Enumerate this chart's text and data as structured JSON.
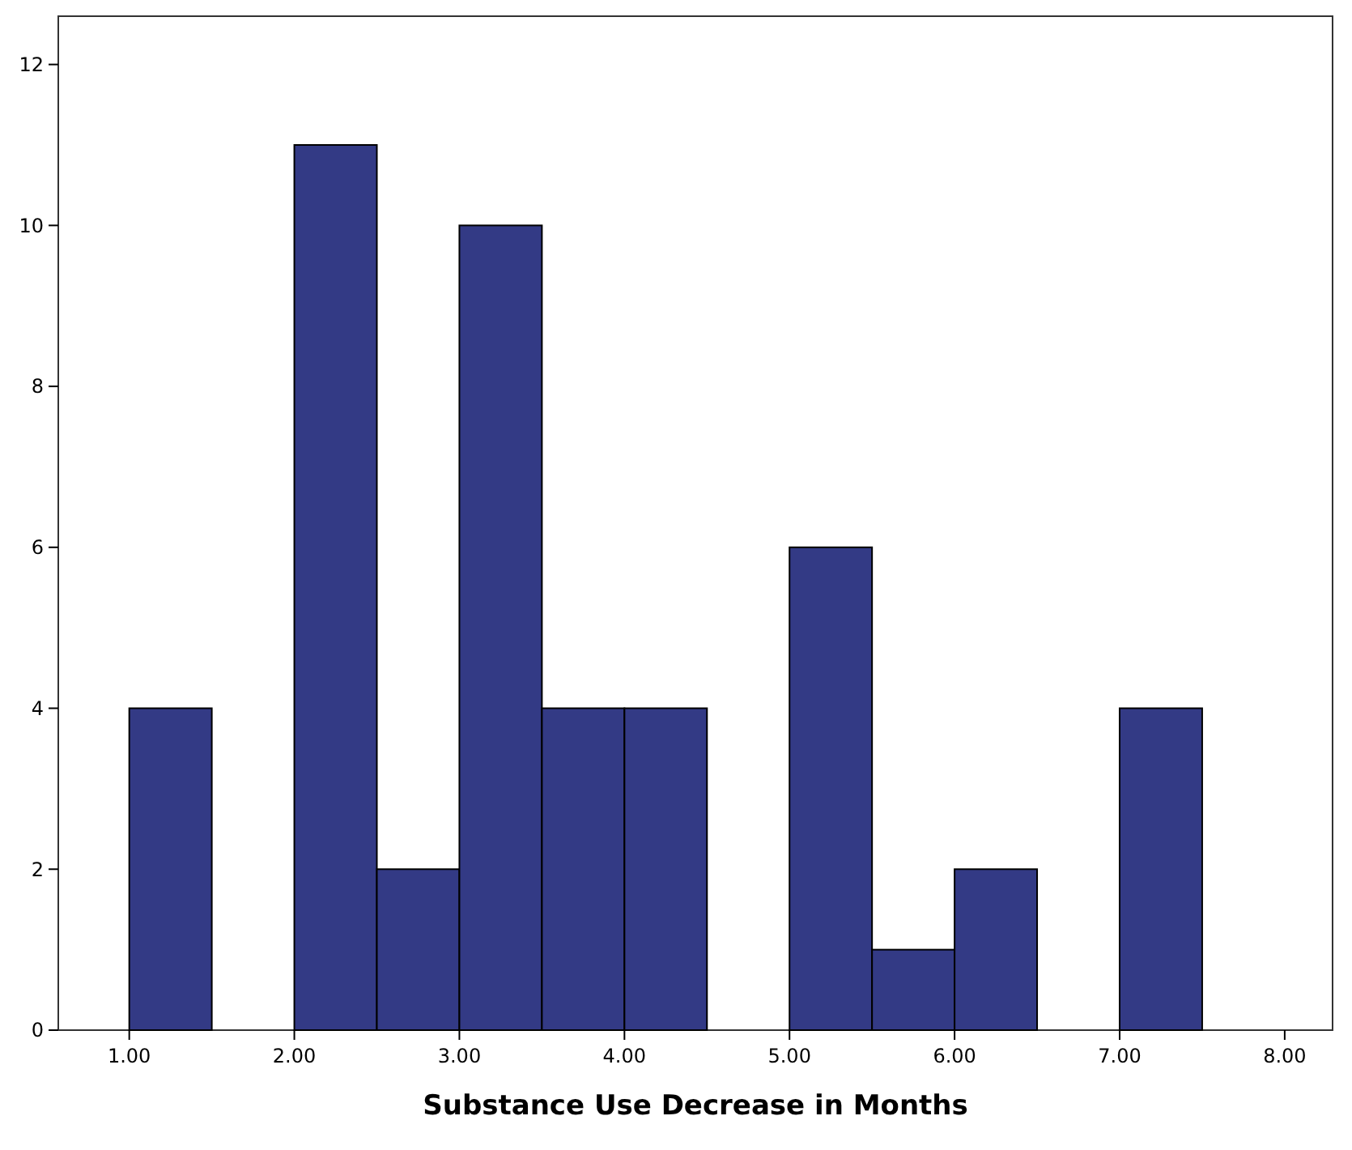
{
  "chart_data": {
    "type": "histogram",
    "xlabel": "Substance Use Decrease in Months",
    "bins": [
      1.0,
      1.5,
      2.0,
      2.5,
      3.0,
      3.5,
      4.0,
      4.5,
      5.0,
      5.5,
      6.0,
      6.5,
      7.0,
      7.5
    ],
    "values": [
      4,
      0,
      11,
      2,
      10,
      4,
      4,
      0,
      6,
      1,
      2,
      0,
      4
    ],
    "color": "#333a85",
    "xlim": [
      0.57,
      8.29
    ],
    "xticks": [
      {
        "value": 1,
        "label": "1.00"
      },
      {
        "value": 2,
        "label": "2.00"
      },
      {
        "value": 3,
        "label": "3.00"
      },
      {
        "value": 4,
        "label": "4.00"
      },
      {
        "value": 5,
        "label": "5.00"
      },
      {
        "value": 6,
        "label": "6.00"
      },
      {
        "value": 7,
        "label": "7.00"
      },
      {
        "value": 8,
        "label": "8.00"
      }
    ],
    "ylim": [
      0,
      12.6
    ],
    "yticks": [
      0,
      2,
      4,
      6,
      8,
      10,
      12
    ],
    "grid": false
  }
}
